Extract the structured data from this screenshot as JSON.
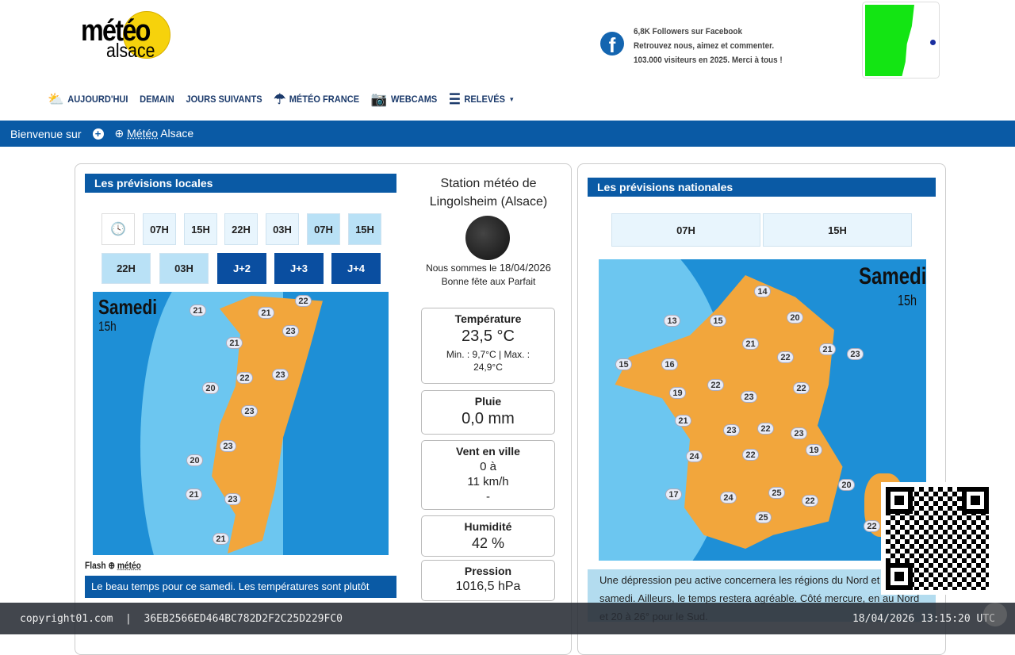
{
  "header": {
    "logo_line1": "météo",
    "logo_line2": "alsace",
    "facebook": {
      "line1": "6,8K Followers sur Facebook",
      "line2": "Retrouvez nous, aimez et commenter.",
      "line3": "103.000 visiteurs en 2025. Merci à tous !"
    }
  },
  "nav": [
    {
      "label": "AUJOURD'HUI",
      "icon": "weather-icon"
    },
    {
      "label": "DEMAIN"
    },
    {
      "label": "JOURS SUIVANTS"
    },
    {
      "label": "MÉTÉO FRANCE",
      "icon": "umbrella-icon"
    },
    {
      "label": "WEBCAMS",
      "icon": "camera-icon"
    },
    {
      "label": "RELEVÉS",
      "icon": "list-icon",
      "dropdown": true
    }
  ],
  "welcome": {
    "prefix": "Bienvenue sur",
    "link": "Météo",
    "suffix": "Alsace"
  },
  "local": {
    "title": "Les prévisions locales",
    "row1": [
      "07H",
      "15H",
      "22H",
      "03H",
      "07H",
      "15H"
    ],
    "row2": [
      "22H",
      "03H",
      "J+2",
      "J+3",
      "J+4"
    ],
    "map_day": "Samedi",
    "map_hour": "15h",
    "temps": [
      22,
      21,
      21,
      23,
      21,
      22,
      23,
      20,
      23,
      23,
      20,
      21,
      23,
      21
    ],
    "flash_label": "Flash",
    "flash_link": "météo",
    "flash_text": "Le beau temps pour ce samedi. Les températures sont plutôt"
  },
  "station": {
    "title": "Station météo de Lingolsheim (Alsace)",
    "date_prefix": "Nous sommes le",
    "date": "18/04/2026",
    "fete": "Bonne fête aux Parfait",
    "temperature": {
      "label": "Température",
      "value": "23,5 °C",
      "minmax": "Min. : 9,7°C | Max. : 24,9°C"
    },
    "rain": {
      "label": "Pluie",
      "value": "0,0 mm"
    },
    "wind": {
      "label": "Vent en ville",
      "line1": "0 à",
      "line2": "11 km/h",
      "line3": "-"
    },
    "humidity": {
      "label": "Humidité",
      "value": "42 %"
    },
    "pressure": {
      "label": "Pression",
      "value": "1016,5 hPa"
    }
  },
  "national": {
    "title": "Les prévisions nationales",
    "tabs": [
      "07H",
      "15H"
    ],
    "map_day": "Samedi",
    "map_hour": "15h",
    "temps": [
      14,
      13,
      15,
      20,
      21,
      21,
      23,
      22,
      15,
      16,
      19,
      22,
      23,
      22,
      21,
      23,
      22,
      23,
      19,
      24,
      22,
      17,
      24,
      25,
      22,
      25,
      20,
      22
    ],
    "description": "Une dépression peu active concernera les régions du Nord et de ce samedi. Ailleurs, le temps restera agréable. Côté mercure, en au Nord et 20 à 26° pour le Sud."
  },
  "footer": {
    "left": "copyright01.com  |  36EB2566ED464BC782D2F2C25D229FC0",
    "right": "18/04/2026 13:15:20 UTC"
  },
  "colors": {
    "brand": "#0a5aa5",
    "land": "#f2a63c",
    "sea": "#1e8fd6"
  }
}
